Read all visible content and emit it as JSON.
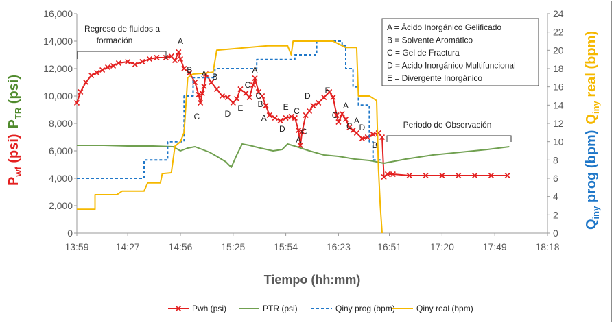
{
  "chart_data": {
    "type": "line",
    "xlabel": "Tiempo (hh:mm)",
    "x_ticks": [
      "13:59",
      "14:27",
      "14:56",
      "15:25",
      "15:54",
      "16:23",
      "16:51",
      "17:20",
      "17:49",
      "18:18"
    ],
    "xlim": [
      "13:59",
      "18:18"
    ],
    "y_left": {
      "label_parts": [
        {
          "base": "P",
          "sub": "wf",
          "unit": " (psi)",
          "color": "#e32020"
        },
        {
          "base": "P",
          "sub": "TR",
          "unit": " (psi)",
          "color": "#4f8a2c"
        }
      ],
      "ylim": [
        0,
        16000
      ],
      "ticks": [
        "0",
        "2,000",
        "4,000",
        "6,000",
        "8,000",
        "10,000",
        "12,000",
        "14,000",
        "16,000"
      ]
    },
    "y_right": {
      "label_parts": [
        {
          "base": "Q",
          "sub": "iny",
          "unit": " prog (bpm)",
          "color": "#1f77c8"
        },
        {
          "base": "Q",
          "sub": "iny",
          "unit": " real (bpm)",
          "color": "#f5b800"
        }
      ],
      "ylim": [
        0,
        24
      ],
      "ticks": [
        "0",
        "2",
        "4",
        "6",
        "8",
        "10",
        "12",
        "14",
        "16",
        "18",
        "20",
        "22",
        "24"
      ]
    },
    "series": [
      {
        "name": "Pwh (psi)",
        "axis": "left",
        "color": "#e32020",
        "marker": "x",
        "points": [
          [
            "13:59",
            9500
          ],
          [
            "14:01",
            10300
          ],
          [
            "14:04",
            11000
          ],
          [
            "14:07",
            11500
          ],
          [
            "14:10",
            11700
          ],
          [
            "14:13",
            11900
          ],
          [
            "14:16",
            12100
          ],
          [
            "14:19",
            12200
          ],
          [
            "14:22",
            12400
          ],
          [
            "14:27",
            12500
          ],
          [
            "14:31",
            12300
          ],
          [
            "14:35",
            12500
          ],
          [
            "14:39",
            12700
          ],
          [
            "14:43",
            12800
          ],
          [
            "14:48",
            12800
          ],
          [
            "14:51",
            12900
          ],
          [
            "14:53",
            12600
          ],
          [
            "14:55",
            13200
          ],
          [
            "14:56",
            12700
          ],
          [
            "14:58",
            12000
          ],
          [
            "15:01",
            11700
          ],
          [
            "15:04",
            11000
          ],
          [
            "15:06",
            10100
          ],
          [
            "15:07",
            9500
          ],
          [
            "15:08",
            10200
          ],
          [
            "15:09",
            10700
          ],
          [
            "15:10",
            11600
          ],
          [
            "15:13",
            11000
          ],
          [
            "15:16",
            10500
          ],
          [
            "15:19",
            10000
          ],
          [
            "15:22",
            9900
          ],
          [
            "15:25",
            9500
          ],
          [
            "15:27",
            9800
          ],
          [
            "15:29",
            10500
          ],
          [
            "15:32",
            10200
          ],
          [
            "15:34",
            9900
          ],
          [
            "15:36",
            10800
          ],
          [
            "15:37",
            11300
          ],
          [
            "15:39",
            10300
          ],
          [
            "15:41",
            10000
          ],
          [
            "15:43",
            9300
          ],
          [
            "15:45",
            8600
          ],
          [
            "15:48",
            8400
          ],
          [
            "15:51",
            8200
          ],
          [
            "15:54",
            8400
          ],
          [
            "15:57",
            8500
          ],
          [
            "15:59",
            8400
          ],
          [
            "16:01",
            7500
          ],
          [
            "16:02",
            6400
          ],
          [
            "16:03",
            7400
          ],
          [
            "16:05",
            8600
          ],
          [
            "16:07",
            8900
          ],
          [
            "16:09",
            9300
          ],
          [
            "16:12",
            9500
          ],
          [
            "16:15",
            9900
          ],
          [
            "16:18",
            10300
          ],
          [
            "16:20",
            9900
          ],
          [
            "16:22",
            8600
          ],
          [
            "16:23",
            8100
          ],
          [
            "16:25",
            8700
          ],
          [
            "16:27",
            8300
          ],
          [
            "16:29",
            7700
          ],
          [
            "16:31",
            7500
          ],
          [
            "16:33",
            7300
          ],
          [
            "16:36",
            6900
          ],
          [
            "16:39",
            7000
          ],
          [
            "16:42",
            7200
          ],
          [
            "16:45",
            7300
          ],
          [
            "16:47",
            7000
          ],
          [
            "16:48",
            4100
          ],
          [
            "16:50",
            4300
          ],
          [
            "16:53",
            4300
          ],
          [
            "17:02",
            4200
          ],
          [
            "17:11",
            4200
          ],
          [
            "17:20",
            4200
          ],
          [
            "17:29",
            4200
          ],
          [
            "17:38",
            4200
          ],
          [
            "17:47",
            4200
          ],
          [
            "17:56",
            4200
          ]
        ]
      },
      {
        "name": "PTR (psi)",
        "axis": "left",
        "color": "#70a050",
        "points": [
          [
            "13:59",
            6400
          ],
          [
            "14:14",
            6400
          ],
          [
            "14:27",
            6350
          ],
          [
            "14:41",
            6350
          ],
          [
            "14:52",
            6300
          ],
          [
            "14:56",
            6000
          ],
          [
            "15:00",
            6200
          ],
          [
            "15:04",
            6300
          ],
          [
            "15:08",
            6100
          ],
          [
            "15:12",
            5900
          ],
          [
            "15:16",
            5600
          ],
          [
            "15:21",
            5200
          ],
          [
            "15:24",
            4800
          ],
          [
            "15:27",
            5700
          ],
          [
            "15:30",
            6500
          ],
          [
            "15:34",
            6400
          ],
          [
            "15:40",
            6200
          ],
          [
            "15:47",
            6000
          ],
          [
            "15:52",
            6100
          ],
          [
            "15:55",
            6500
          ],
          [
            "16:00",
            6300
          ],
          [
            "16:07",
            6000
          ],
          [
            "16:15",
            5700
          ],
          [
            "16:23",
            5600
          ],
          [
            "16:32",
            5400
          ],
          [
            "16:40",
            5300
          ],
          [
            "16:48",
            5100
          ],
          [
            "17:00",
            5400
          ],
          [
            "17:15",
            5700
          ],
          [
            "17:30",
            5900
          ],
          [
            "17:45",
            6100
          ],
          [
            "17:57",
            6300
          ]
        ]
      },
      {
        "name": "Qiny prog (bpm)",
        "axis": "right",
        "color": "#1f77c8",
        "dash": true,
        "points": [
          [
            "13:59",
            6
          ],
          [
            "14:36",
            6
          ],
          [
            "14:36",
            8
          ],
          [
            "14:49",
            8
          ],
          [
            "14:49",
            10
          ],
          [
            "14:58",
            10
          ],
          [
            "14:58",
            15
          ],
          [
            "15:03",
            15
          ],
          [
            "15:03",
            17
          ],
          [
            "15:15",
            17
          ],
          [
            "15:15",
            18
          ],
          [
            "15:38",
            18
          ],
          [
            "15:38",
            19
          ],
          [
            "15:59",
            19
          ],
          [
            "15:59",
            19.5
          ],
          [
            "16:11",
            19.5
          ],
          [
            "16:11",
            21
          ],
          [
            "16:25",
            21
          ],
          [
            "16:25",
            20.5
          ],
          [
            "16:27",
            20.5
          ],
          [
            "16:27",
            18
          ],
          [
            "16:31",
            18
          ],
          [
            "16:31",
            16
          ],
          [
            "16:34",
            16
          ],
          [
            "16:34",
            14
          ],
          [
            "16:40",
            14
          ],
          [
            "16:40",
            10
          ],
          [
            "16:42",
            10
          ],
          [
            "16:42",
            8
          ],
          [
            "16:47",
            8
          ]
        ]
      },
      {
        "name": "Qiny real (bpm)",
        "axis": "right",
        "color": "#f5b800",
        "points": [
          [
            "13:59",
            2.6
          ],
          [
            "14:09",
            2.6
          ],
          [
            "14:09",
            4.2
          ],
          [
            "14:21",
            4.2
          ],
          [
            "14:24",
            4.6
          ],
          [
            "14:36",
            4.6
          ],
          [
            "14:38",
            5.5
          ],
          [
            "14:45",
            5.5
          ],
          [
            "14:46",
            6.5
          ],
          [
            "14:51",
            6.6
          ],
          [
            "14:53",
            9.5
          ],
          [
            "14:56",
            10
          ],
          [
            "14:58",
            11
          ],
          [
            "15:00",
            17
          ],
          [
            "15:03",
            17.4
          ],
          [
            "15:09",
            17.5
          ],
          [
            "15:14",
            17.6
          ],
          [
            "15:16",
            20
          ],
          [
            "15:44",
            20.5
          ],
          [
            "15:55",
            20.5
          ],
          [
            "15:57",
            19.5
          ],
          [
            "15:58",
            21
          ],
          [
            "16:00",
            21
          ],
          [
            "16:20",
            21
          ],
          [
            "16:27",
            20.3
          ],
          [
            "16:33",
            20.3
          ],
          [
            "16:34",
            15
          ],
          [
            "16:40",
            15
          ],
          [
            "16:44",
            14.5
          ],
          [
            "16:45",
            7
          ],
          [
            "16:46",
            3
          ],
          [
            "16:47",
            0
          ]
        ]
      }
    ],
    "point_labels": [
      {
        "t": "A",
        "x": "14:56",
        "y": 14000
      },
      {
        "t": "B",
        "x": "15:01",
        "y": 11900
      },
      {
        "t": "C",
        "x": "15:05",
        "y": 8500
      },
      {
        "t": "A",
        "x": "15:09",
        "y": 11600
      },
      {
        "t": "B",
        "x": "15:15",
        "y": 11400
      },
      {
        "t": "D",
        "x": "15:22",
        "y": 8700
      },
      {
        "t": "E",
        "x": "15:29",
        "y": 9100
      },
      {
        "t": "C",
        "x": "15:33",
        "y": 10800
      },
      {
        "t": "A",
        "x": "15:37",
        "y": 11900
      },
      {
        "t": "C",
        "x": "15:39",
        "y": 10000
      },
      {
        "t": "B",
        "x": "15:40",
        "y": 9400
      },
      {
        "t": "A",
        "x": "15:42",
        "y": 8400
      },
      {
        "t": "D",
        "x": "15:52",
        "y": 7600
      },
      {
        "t": "E",
        "x": "15:54",
        "y": 9200
      },
      {
        "t": "C",
        "x": "16:00",
        "y": 8900
      },
      {
        "t": "A",
        "x": "16:01",
        "y": 6800
      },
      {
        "t": "C",
        "x": "16:04",
        "y": 7400
      },
      {
        "t": "D",
        "x": "16:06",
        "y": 10000
      },
      {
        "t": "E",
        "x": "16:17",
        "y": 10400
      },
      {
        "t": "C",
        "x": "16:21",
        "y": 8600
      },
      {
        "t": "A",
        "x": "16:27",
        "y": 9300
      },
      {
        "t": "C",
        "x": "16:29",
        "y": 7800
      },
      {
        "t": "A",
        "x": "16:33",
        "y": 8200
      },
      {
        "t": "D",
        "x": "16:36",
        "y": 7700
      },
      {
        "t": "B",
        "x": "16:43",
        "y": 6400
      }
    ],
    "annotations": {
      "regreso": [
        "Regreso de fluidos a",
        "formación"
      ],
      "periodo": "Periodo de Observación"
    },
    "key_box": [
      "A = Ácido Inorgánico Gelificado",
      "B = Solvente Aromático",
      "C = Gel de Fractura",
      "D = Acido Inorgánico Multifuncional",
      "E = Divergente Inorgánico"
    ],
    "legend_position": "bottom",
    "grid": false
  }
}
